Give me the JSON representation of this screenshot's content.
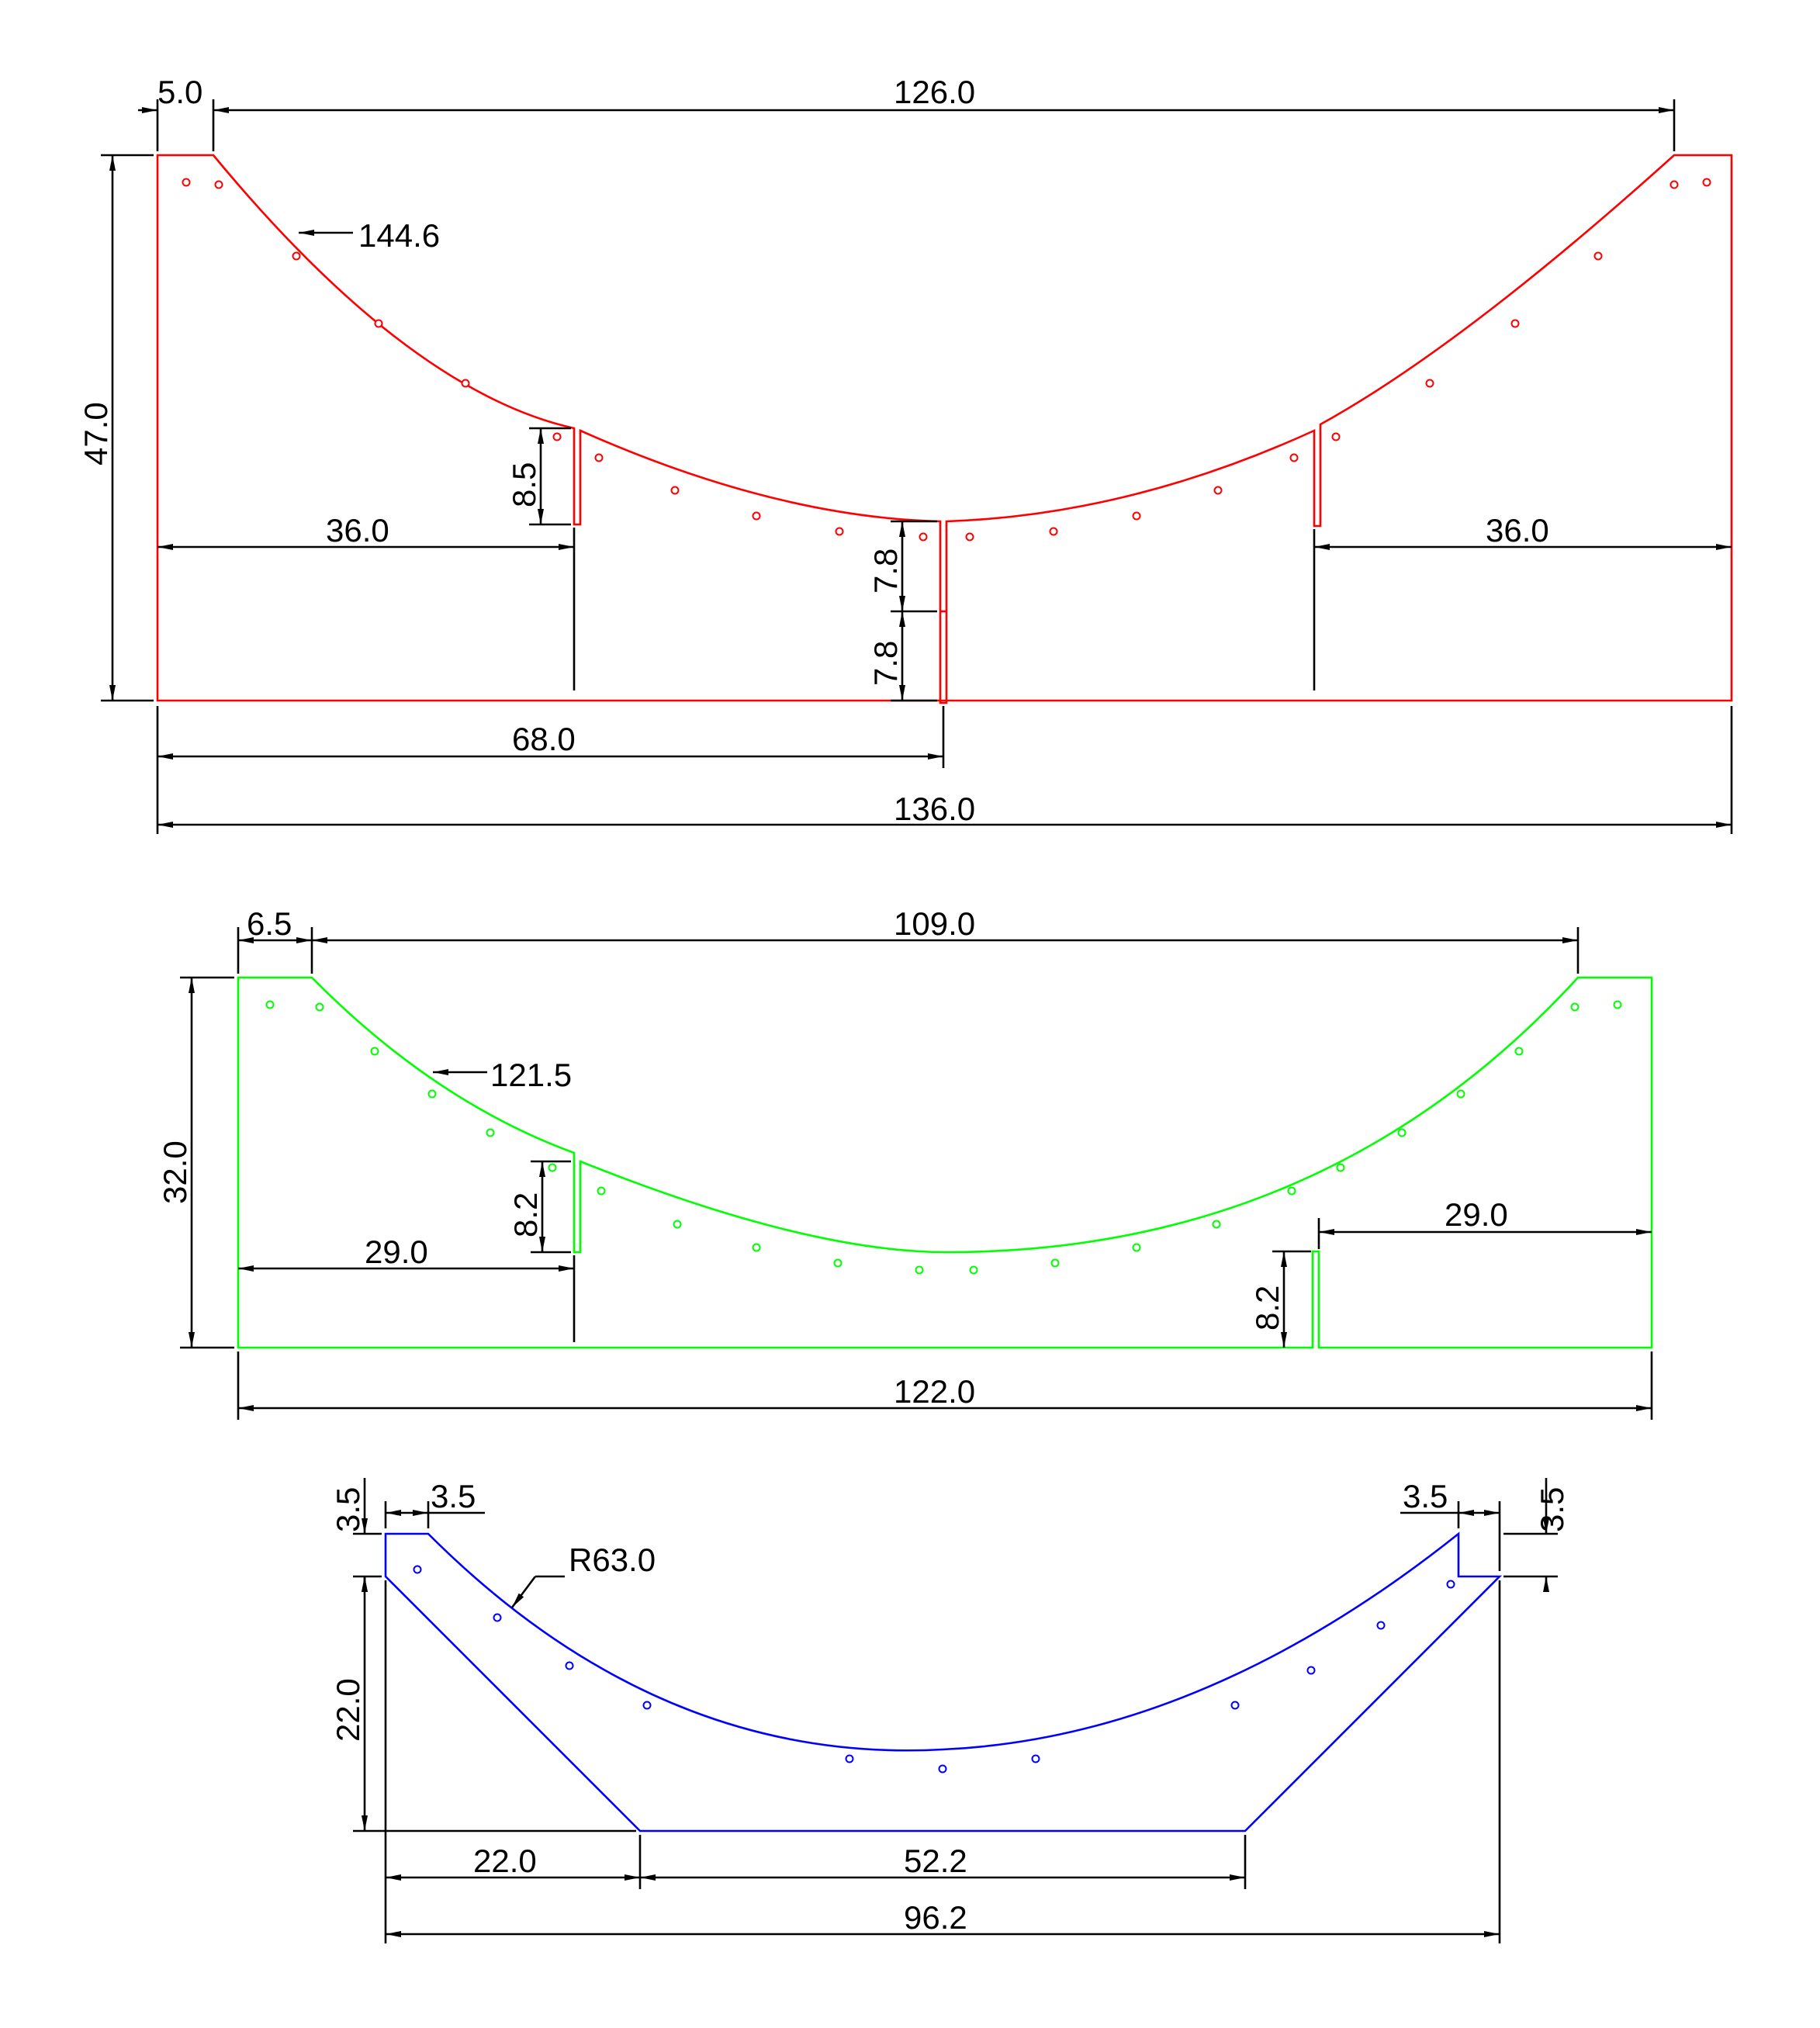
{
  "colors": {
    "part1": "#ff0000",
    "part2": "#00ff00",
    "part3": "#0000ff",
    "dimension": "#000000"
  },
  "part1": {
    "dims": {
      "top_left_flat": "5.0",
      "top_span": "126.0",
      "arc": "144.6",
      "height": "47.0",
      "slot_depth": "8.5",
      "left_slot_offset": "36.0",
      "right_slot_offset": "36.0",
      "center_upper": "7.8",
      "center_lower": "7.8",
      "half_width": "68.0",
      "total_width": "136.0"
    }
  },
  "part2": {
    "dims": {
      "top_left_flat": "6.5",
      "top_span": "109.0",
      "arc": "121.5",
      "height": "32.0",
      "slot_depth_top": "8.2",
      "left_slot_offset": "29.0",
      "right_slot_offset": "29.0",
      "slot_depth_bottom": "8.2",
      "total_width": "122.0"
    }
  },
  "part3": {
    "dims": {
      "left_step_h": "3.5",
      "left_step_w": "3.5",
      "right_step_w": "3.5",
      "right_step_h": "3.5",
      "radius": "R63.0",
      "height": "22.0",
      "left_base": "22.0",
      "bottom_flat": "52.2",
      "total_width": "96.2"
    }
  }
}
